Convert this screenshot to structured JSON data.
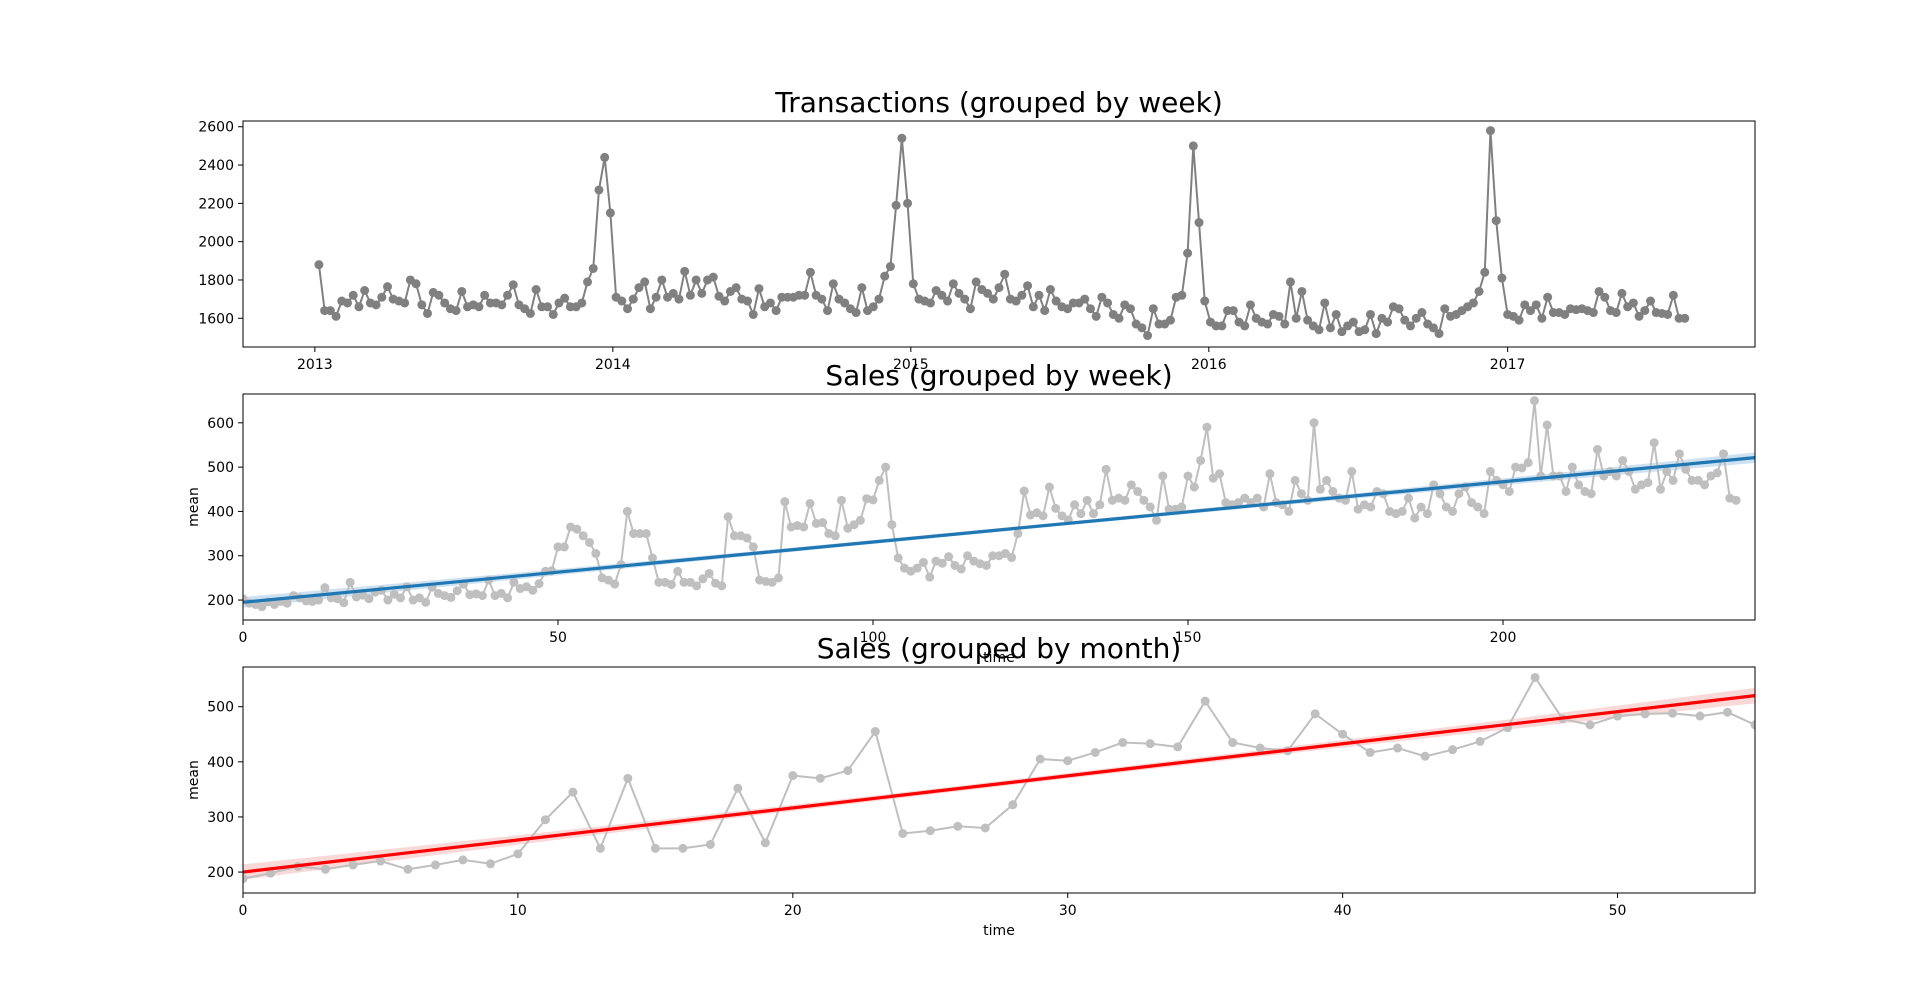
{
  "chart_data": [
    {
      "type": "line",
      "title": "Transactions (grouped by week)",
      "xlabel": "",
      "ylabel": "",
      "x_is_date": true,
      "xlim": [
        "2012-10-05",
        "2017-10-31"
      ],
      "ylim": [
        1450,
        2630
      ],
      "xticks": [
        {
          "value": "2013-01-01",
          "label": "2013"
        },
        {
          "value": "2014-01-01",
          "label": "2014"
        },
        {
          "value": "2015-01-01",
          "label": "2015"
        },
        {
          "value": "2016-01-01",
          "label": "2016"
        },
        {
          "value": "2017-01-01",
          "label": "2017"
        }
      ],
      "yticks": [
        1600,
        1800,
        2000,
        2200,
        2400,
        2600
      ],
      "grid": false,
      "colors": {
        "line": "#808080",
        "marker": "#808080"
      },
      "series": [
        {
          "start_date": "2013-01-06",
          "step_days": 7,
          "values": [
            1880,
            1640,
            1640,
            1610,
            1690,
            1680,
            1720,
            1660,
            1745,
            1680,
            1670,
            1710,
            1765,
            1700,
            1690,
            1680,
            1800,
            1780,
            1670,
            1625,
            1735,
            1720,
            1680,
            1650,
            1640,
            1740,
            1660,
            1670,
            1660,
            1720,
            1680,
            1680,
            1670,
            1720,
            1775,
            1670,
            1650,
            1625,
            1750,
            1660,
            1660,
            1620,
            1680,
            1705,
            1660,
            1660,
            1680,
            1790,
            1860,
            2270,
            2440,
            2150,
            1710,
            1690,
            1650,
            1700,
            1760,
            1790,
            1650,
            1710,
            1800,
            1710,
            1730,
            1700,
            1845,
            1720,
            1800,
            1730,
            1800,
            1815,
            1715,
            1690,
            1740,
            1760,
            1700,
            1690,
            1620,
            1755,
            1660,
            1680,
            1640,
            1710,
            1710,
            1710,
            1720,
            1720,
            1840,
            1720,
            1700,
            1640,
            1780,
            1700,
            1680,
            1650,
            1630,
            1760,
            1640,
            1660,
            1700,
            1820,
            1870,
            2190,
            2540,
            2200,
            1780,
            1700,
            1690,
            1680,
            1745,
            1720,
            1690,
            1780,
            1730,
            1700,
            1650,
            1790,
            1750,
            1730,
            1700,
            1760,
            1830,
            1700,
            1690,
            1720,
            1770,
            1660,
            1720,
            1640,
            1750,
            1690,
            1660,
            1650,
            1680,
            1680,
            1700,
            1650,
            1610,
            1710,
            1680,
            1620,
            1600,
            1670,
            1650,
            1570,
            1550,
            1510,
            1650,
            1570,
            1570,
            1590,
            1710,
            1720,
            1940,
            2500,
            2100,
            1690,
            1580,
            1560,
            1560,
            1640,
            1640,
            1580,
            1560,
            1670,
            1600,
            1580,
            1570,
            1620,
            1610,
            1570,
            1790,
            1600,
            1740,
            1590,
            1560,
            1540,
            1680,
            1550,
            1620,
            1530,
            1560,
            1580,
            1530,
            1540,
            1620,
            1520,
            1600,
            1580,
            1660,
            1650,
            1590,
            1560,
            1600,
            1630,
            1570,
            1550,
            1520,
            1650,
            1610,
            1620,
            1640,
            1660,
            1680,
            1740,
            1840,
            2580,
            2110,
            1810,
            1620,
            1610,
            1590,
            1670,
            1640,
            1670,
            1600,
            1710,
            1630,
            1630,
            1620,
            1650,
            1645,
            1650,
            1640,
            1630,
            1740,
            1710,
            1640,
            1630,
            1730,
            1660,
            1680,
            1610,
            1640,
            1690,
            1630,
            1625,
            1620,
            1720,
            1600,
            1600
          ]
        }
      ]
    },
    {
      "type": "line",
      "title": "Sales (grouped by week)",
      "xlabel": "time",
      "ylabel": "mean",
      "xlim": [
        0,
        240
      ],
      "ylim": [
        155,
        665
      ],
      "xticks": [
        0,
        50,
        100,
        150,
        200
      ],
      "yticks": [
        200,
        300,
        400,
        500,
        600
      ],
      "grid": false,
      "colors": {
        "line": "#bfbfbf",
        "marker": "#bfbfbf",
        "fit": "#1f77b4",
        "band": "#a6c8e6"
      },
      "fit": {
        "intercept": 195,
        "slope": 1.36,
        "band_halfwidth_at_ends": 12
      },
      "series": [
        {
          "values": [
            203,
            193,
            190,
            185,
            196,
            190,
            197,
            193,
            210,
            205,
            198,
            197,
            200,
            228,
            205,
            203,
            194,
            240,
            207,
            211,
            203,
            218,
            222,
            200,
            213,
            205,
            230,
            200,
            205,
            195,
            229,
            215,
            210,
            206,
            221,
            236,
            212,
            214,
            210,
            245,
            210,
            215,
            205,
            240,
            226,
            230,
            222,
            237,
            265,
            266,
            320,
            320,
            365,
            360,
            345,
            330,
            305,
            250,
            245,
            236,
            280,
            400,
            350,
            350,
            350,
            295,
            240,
            240,
            235,
            265,
            240,
            240,
            232,
            248,
            260,
            238,
            232,
            388,
            345,
            345,
            340,
            320,
            245,
            242,
            240,
            250,
            422,
            365,
            368,
            365,
            418,
            373,
            375,
            350,
            345,
            425,
            362,
            370,
            380,
            429,
            426,
            470,
            500,
            370,
            295,
            272,
            265,
            272,
            285,
            252,
            288,
            283,
            298,
            278,
            270,
            300,
            288,
            282,
            278,
            300,
            300,
            305,
            296,
            350,
            446,
            392,
            397,
            390,
            455,
            407,
            390,
            381,
            415,
            395,
            425,
            395,
            415,
            495,
            425,
            430,
            425,
            460,
            445,
            425,
            410,
            380,
            480,
            405,
            405,
            410,
            480,
            455,
            515,
            590,
            475,
            485,
            420,
            415,
            420,
            430,
            420,
            430,
            410,
            485,
            420,
            415,
            400,
            470,
            440,
            425,
            600,
            450,
            470,
            445,
            430,
            425,
            490,
            405,
            415,
            410,
            445,
            440,
            400,
            395,
            400,
            430,
            385,
            410,
            395,
            460,
            440,
            410,
            400,
            440,
            455,
            420,
            410,
            395,
            490,
            470,
            460,
            445,
            500,
            498,
            510,
            650,
            480,
            595,
            480,
            480,
            445,
            500,
            460,
            445,
            440,
            540,
            480,
            490,
            480,
            515,
            490,
            450,
            460,
            465,
            555,
            450,
            490,
            470,
            530,
            495,
            470,
            470,
            460,
            480,
            487,
            530,
            430,
            425
          ]
        }
      ]
    },
    {
      "type": "line",
      "title": "Sales (grouped by month)",
      "xlabel": "time",
      "ylabel": "mean",
      "xlim": [
        0,
        55
      ],
      "ylim": [
        162,
        572
      ],
      "xticks": [
        0,
        10,
        20,
        30,
        40,
        50
      ],
      "yticks": [
        200,
        300,
        400,
        500
      ],
      "grid": false,
      "colors": {
        "line": "#bfbfbf",
        "marker": "#bfbfbf",
        "fit": "#ff0000",
        "band": "#f4b8b8"
      },
      "fit": {
        "intercept": 200,
        "slope": 5.82,
        "band_halfwidth_at_ends": 14
      },
      "series": [
        {
          "values": [
            188,
            198,
            210,
            205,
            213,
            220,
            205,
            213,
            222,
            215,
            233,
            295,
            345,
            243,
            370,
            243,
            243,
            250,
            352,
            253,
            375,
            370,
            384,
            455,
            270,
            275,
            283,
            280,
            322,
            405,
            402,
            417,
            435,
            433,
            427,
            510,
            435,
            425,
            420,
            487,
            450,
            417,
            425,
            410,
            422,
            437,
            462,
            553,
            478,
            467,
            483,
            487,
            488,
            483,
            490,
            467
          ]
        }
      ]
    }
  ]
}
